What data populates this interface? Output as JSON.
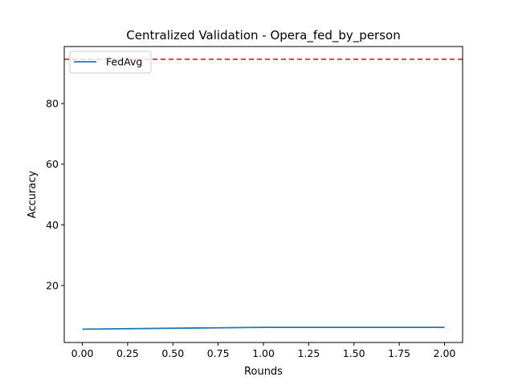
{
  "chart_data": {
    "type": "line",
    "title": "Centralized Validation - Opera_fed_by_person",
    "xlabel": "Rounds",
    "ylabel": "Accuracy",
    "xlim": [
      -0.1,
      2.1
    ],
    "ylim": [
      1.2,
      98.8
    ],
    "x_ticks": [
      "0.00",
      "0.25",
      "0.50",
      "0.75",
      "1.00",
      "1.25",
      "1.50",
      "1.75",
      "2.00"
    ],
    "y_ticks": [
      "20",
      "40",
      "60",
      "80"
    ],
    "grid": false,
    "legend_position": "upper-left",
    "series": [
      {
        "name": "FedAvg",
        "color": "#1f77b4",
        "x": [
          0,
          1,
          2
        ],
        "y": [
          5.6,
          6.2,
          6.2
        ]
      }
    ],
    "reference_line": {
      "y": 94.6,
      "color": "#ff0000",
      "style": "dashed"
    }
  }
}
